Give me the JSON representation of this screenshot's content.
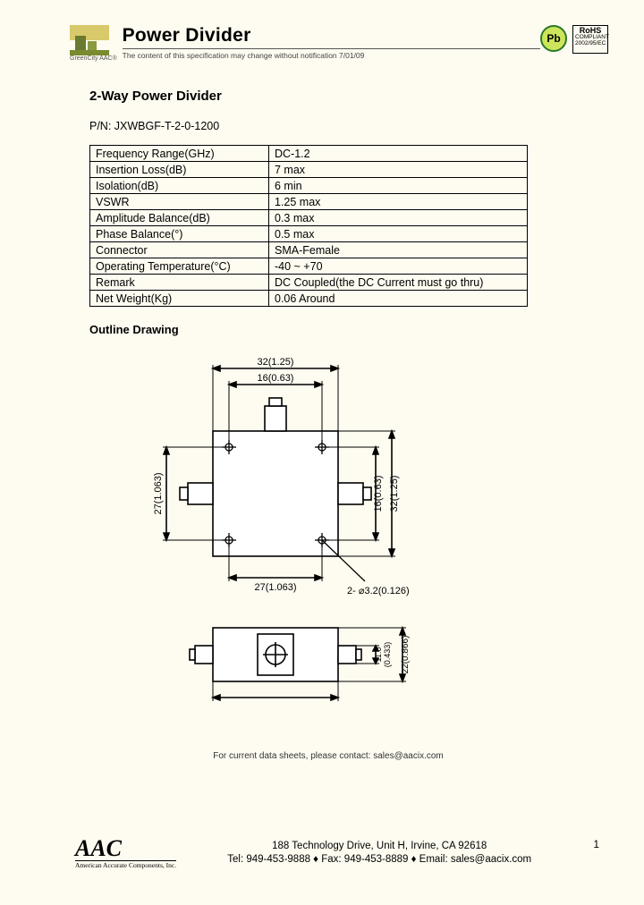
{
  "header": {
    "logo_caption": "GreenCity AAC®",
    "doc_title": "Power Divider",
    "disclaimer": "The content of this specification may change without notification 7/01/09",
    "pb_label": "Pb",
    "rohs": {
      "title": "RoHS",
      "line2": "COMPLIANT",
      "line3": "2002/95/EC"
    }
  },
  "product": {
    "section_title": "2-Way Power Divider",
    "pn_label": "P/N: JXWBGF-T-2-0-1200",
    "spec_rows": [
      [
        "Frequency Range(GHz)",
        "DC-1.2"
      ],
      [
        "Insertion Loss(dB)",
        "7 max"
      ],
      [
        "Isolation(dB)",
        "6 min"
      ],
      [
        "VSWR",
        "1.25 max"
      ],
      [
        "Amplitude Balance(dB)",
        "0.3 max"
      ],
      [
        "Phase Balance(°)",
        "0.5 max"
      ],
      [
        "Connector",
        "SMA-Female"
      ],
      [
        "Operating Temperature(°C)",
        "-40 ~ +70"
      ],
      [
        "Remark",
        "DC Coupled(the DC Current must go thru)"
      ],
      [
        "Net Weight(Kg)",
        "0.06 Around"
      ]
    ],
    "outline_title": "Outline Drawing"
  },
  "drawing": {
    "dims": {
      "top_outer": "32(1.25)",
      "top_inner": "16(0.63)",
      "right_outer": "32(1.25)",
      "right_inner": "16(0.63)",
      "left_27": "27(1.063)",
      "bottom_27": "27(1.063)",
      "hole": "2- ⌀3.2(0.126)",
      "side_h1": "11.0",
      "side_h2": "(0.433)",
      "side_h3": "22(0.866)"
    },
    "colors": {
      "stroke": "#000000",
      "fill": "#ffffff",
      "bg": "#fefbf0"
    }
  },
  "contact": "For current data sheets, please contact: sales@aacix.com",
  "footer": {
    "company": "AAC",
    "company_sub": "American Accurate Components, Inc.",
    "address": "188 Technology Drive, Unit H, Irvine, CA 92618",
    "phones": "Tel: 949-453-9888 ♦ Fax: 949-453-8889 ♦ Email: sales@aacix.com",
    "page": "1"
  }
}
